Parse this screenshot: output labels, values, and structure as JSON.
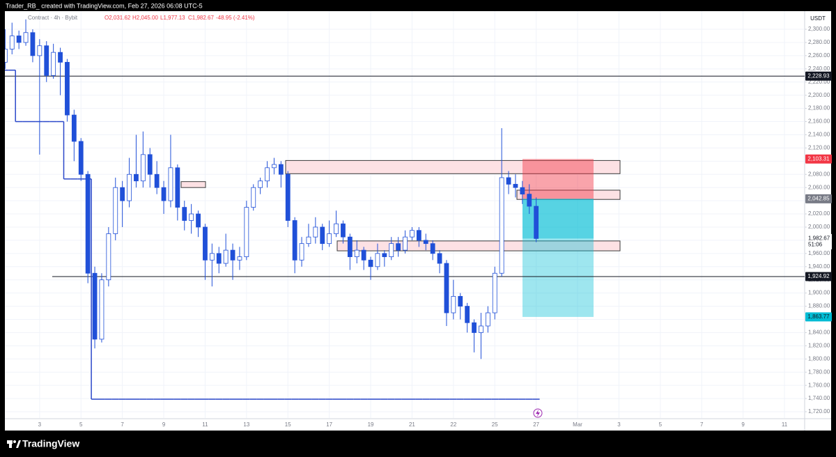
{
  "chart_data": {
    "type": "candlestick",
    "title": "Trader_RB_ created with TradingView.com, Feb 27, 2026 06:08 UTC-5",
    "symbol": "Contract · 4h · Bybit",
    "ohlc_legend": [
      "O2,031.62",
      "H2,045.00",
      "L1,977.13",
      "C1,982.67",
      "-48.95 (-2.41%)"
    ],
    "currency": "USDT",
    "categories": [
      null,
      null,
      null,
      null,
      null,
      "3",
      null,
      null,
      null,
      null,
      null,
      "5",
      null,
      null,
      null,
      null,
      null,
      "7",
      null,
      null,
      null,
      null,
      null,
      "9",
      null,
      null,
      null,
      null,
      null,
      "11",
      null,
      null,
      null,
      null,
      null,
      "13",
      null,
      null,
      null,
      null,
      null,
      "15",
      null,
      null,
      null,
      null,
      null,
      "17",
      null,
      null,
      null,
      null,
      null,
      "19",
      null,
      null,
      null,
      null,
      null,
      "21",
      null,
      null,
      null,
      null,
      null,
      "22",
      null,
      null,
      null,
      null,
      null,
      "25",
      null,
      null,
      null,
      null,
      null,
      "27",
      null,
      null,
      null,
      null,
      null,
      "Mar",
      null,
      null,
      null,
      null,
      null,
      "3",
      null,
      null,
      null,
      null,
      null,
      "5",
      null,
      null,
      null,
      null,
      null,
      "7",
      null,
      null,
      null,
      null,
      null,
      "9",
      null,
      null,
      null,
      null,
      null,
      "11",
      null,
      null
    ],
    "open": [
      2250,
      2270,
      2290,
      2280,
      2295,
      2260,
      2275,
      2230,
      2265,
      2250,
      2170,
      2130,
      2080,
      1930,
      1830,
      1920,
      1990,
      2060,
      2040,
      2080,
      2070,
      2110,
      2080,
      2060,
      2040,
      2090,
      2030,
      2010,
      2020,
      2000,
      1950,
      1960,
      1945,
      1965,
      1950,
      1955,
      2030,
      2060,
      2070,
      2090,
      2095,
      2080,
      2010,
      1950,
      1975,
      1985,
      2000,
      1975,
      1990,
      2005,
      1985,
      1955,
      1965,
      1950,
      1940,
      1960,
      1955,
      1975,
      1965,
      1985,
      1995,
      1980,
      1975,
      1960,
      1945,
      1870,
      1895,
      1880,
      1855,
      1840,
      1850,
      1870,
      1930,
      2075,
      2065,
      2060,
      2050,
      2031.62,
      null,
      null,
      null,
      null,
      null,
      null,
      null,
      null,
      null,
      null,
      null,
      null,
      null,
      null,
      null,
      null,
      null,
      null,
      null,
      null,
      null,
      null,
      null,
      null,
      null,
      null,
      null,
      null,
      null,
      null,
      null,
      null,
      null,
      null,
      null,
      null,
      null,
      null
    ],
    "high": [
      2300,
      2310,
      2298,
      2315,
      2300,
      2285,
      2282,
      2278,
      2272,
      2255,
      2178,
      2135,
      2085,
      1940,
      1930,
      2000,
      2075,
      2070,
      2105,
      2140,
      2145,
      2120,
      2100,
      2070,
      2140,
      2095,
      2040,
      2035,
      2025,
      2005,
      1975,
      1970,
      1990,
      1975,
      1970,
      2040,
      2065,
      2075,
      2100,
      2105,
      2100,
      2085,
      2015,
      1985,
      2005,
      2015,
      2005,
      2010,
      2025,
      2010,
      1990,
      1980,
      1970,
      1955,
      1975,
      1965,
      1985,
      1985,
      1995,
      2000,
      2000,
      1990,
      1980,
      1965,
      1950,
      1920,
      1900,
      1885,
      1860,
      1870,
      1880,
      1940,
      2150,
      2085,
      2080,
      2070,
      2065,
      2045,
      null,
      null,
      null,
      null,
      null,
      null,
      null,
      null,
      null,
      null,
      null,
      null,
      null,
      null,
      null,
      null,
      null,
      null,
      null,
      null,
      null,
      null,
      null,
      null,
      null,
      null,
      null,
      null,
      null,
      null,
      null,
      null,
      null,
      null,
      null,
      null,
      null,
      null
    ],
    "low": [
      2240,
      2262,
      2270,
      2275,
      2250,
      2110,
      2220,
      2225,
      2200,
      2160,
      2100,
      2070,
      1915,
      1816,
      1825,
      1910,
      1980,
      2000,
      2030,
      2060,
      2060,
      2060,
      2050,
      2020,
      2030,
      2010,
      1995,
      1990,
      1985,
      1920,
      1910,
      1930,
      1940,
      1920,
      1935,
      1950,
      2025,
      2050,
      2060,
      2080,
      2060,
      2000,
      1930,
      1940,
      1970,
      1975,
      1965,
      1970,
      1985,
      1975,
      1935,
      1945,
      1935,
      1920,
      1935,
      1940,
      1950,
      1955,
      1960,
      1980,
      1970,
      1965,
      1950,
      1930,
      1850,
      1860,
      1860,
      1840,
      1810,
      1800,
      1840,
      1860,
      1925,
      2050,
      2045,
      2035,
      2020,
      1977.13,
      null,
      null,
      null,
      null,
      null,
      null,
      null,
      null,
      null,
      null,
      null,
      null,
      null,
      null,
      null,
      null,
      null,
      null,
      null,
      null,
      null,
      null,
      null,
      null,
      null,
      null,
      null,
      null,
      null,
      null,
      null,
      null,
      null,
      null,
      null,
      null,
      null,
      null
    ],
    "close": [
      2270,
      2290,
      2280,
      2295,
      2260,
      2275,
      2230,
      2265,
      2250,
      2170,
      2130,
      2080,
      1930,
      1830,
      1920,
      1990,
      2060,
      2040,
      2080,
      2070,
      2110,
      2080,
      2060,
      2040,
      2090,
      2030,
      2010,
      2020,
      2000,
      1950,
      1960,
      1945,
      1965,
      1950,
      1955,
      2030,
      2060,
      2070,
      2090,
      2095,
      2080,
      2010,
      1950,
      1975,
      1985,
      2000,
      1975,
      1990,
      2005,
      1985,
      1955,
      1965,
      1950,
      1940,
      1960,
      1955,
      1975,
      1965,
      1985,
      1995,
      1980,
      1975,
      1960,
      1945,
      1870,
      1895,
      1880,
      1855,
      1840,
      1850,
      1870,
      1930,
      2075,
      2065,
      2060,
      2050,
      2031.62,
      1982.67,
      null,
      null,
      null,
      null,
      null,
      null,
      null,
      null,
      null,
      null,
      null,
      null,
      null,
      null,
      null,
      null,
      null,
      null,
      null,
      null,
      null,
      null,
      null,
      null,
      null,
      null,
      null,
      null,
      null,
      null,
      null,
      null,
      null,
      null,
      null,
      null,
      null,
      null
    ],
    "up_color": "#ffffff",
    "down_color": "#2050d8",
    "border_color": "#2050d8",
    "step_line": {
      "color": "#2a47c9",
      "values": [
        2238,
        2238,
        2160,
        2160,
        2160,
        2160,
        2160,
        2160,
        2160,
        2073,
        2073,
        2073,
        2073,
        1739,
        1739,
        1739,
        1739,
        1739,
        1739,
        1739,
        1739,
        1739,
        1739,
        1739,
        1739,
        1739,
        1739,
        1739,
        1739,
        1739,
        1739,
        1739,
        1739,
        1739,
        1739,
        1739,
        1739,
        1739,
        1739,
        1739,
        1739,
        1739,
        1739,
        1739,
        1739,
        1739,
        1739,
        1739,
        1739,
        1739,
        1739,
        1739,
        1739,
        1739,
        1739,
        1739,
        1739,
        1739,
        1739,
        1739,
        1739,
        1739,
        1739,
        1739,
        1739,
        1739,
        1739,
        1739,
        1739,
        1739,
        1739,
        1739,
        1739,
        1739,
        1739,
        1739,
        1739,
        1739,
        null,
        null,
        null,
        null,
        null,
        null,
        null,
        null,
        null,
        null,
        null,
        null,
        null,
        null,
        null,
        null,
        null,
        null,
        null,
        null,
        null,
        null,
        null,
        null,
        null,
        null,
        null,
        null,
        null,
        null,
        null,
        null,
        null,
        null,
        null,
        null,
        null,
        null
      ]
    },
    "zones": [
      {
        "top": 2101,
        "bottom": 2081
      },
      {
        "top": 2069,
        "bottom": 2060
      },
      {
        "top": 2056,
        "bottom": 2042
      },
      {
        "top": 1979,
        "bottom": 1964
      }
    ],
    "zone_color": "#fde1e4",
    "levels": [
      {
        "value": 2228.93,
        "label": "2,228.93",
        "color": "#131722"
      },
      {
        "value": 1924.92,
        "label": "1,924.92",
        "color": "#131722"
      }
    ],
    "position": {
      "stop": {
        "value": 2103.31,
        "label": "2,103.31",
        "color": "#f23645"
      },
      "entry": {
        "value": 2042.85,
        "label": "2,042.85",
        "color": "#787b86"
      },
      "target": {
        "value": 1863.77,
        "label": "1,863.77",
        "color": "#00bcd4"
      }
    },
    "last_price": {
      "value": 1982.67,
      "label": "1,982.67",
      "countdown": "51:06"
    },
    "ylim": [
      1710.5,
      2327.5
    ],
    "yticks": [
      {
        "value": 1720,
        "label": "1,720.00"
      },
      {
        "value": 1740,
        "label": "1,740.00"
      },
      {
        "value": 1760,
        "label": "1,760.00"
      },
      {
        "value": 1780,
        "label": "1,780.00"
      },
      {
        "value": 1800,
        "label": "1,800.00"
      },
      {
        "value": 1820,
        "label": "1,820.00"
      },
      {
        "value": 1840,
        "label": "1,840.00"
      },
      {
        "value": 1860,
        "label": "1,860.00"
      },
      {
        "value": 1880,
        "label": "1,880.00"
      },
      {
        "value": 1900,
        "label": "1,900.00"
      },
      {
        "value": 1920,
        "label": "1,920.00"
      },
      {
        "value": 1940,
        "label": "1,940.00"
      },
      {
        "value": 1960,
        "label": "1,960.00"
      },
      {
        "value": 1980,
        "label": "1,980.00"
      },
      {
        "value": 2000,
        "label": "2,000.00"
      },
      {
        "value": 2020,
        "label": "2,020.00"
      },
      {
        "value": 2040,
        "label": "2,040.00"
      },
      {
        "value": 2060,
        "label": "2,060.00"
      },
      {
        "value": 2080,
        "label": "2,080.00"
      },
      {
        "value": 2100,
        "label": "2,100.00"
      },
      {
        "value": 2120,
        "label": "2,120.00"
      },
      {
        "value": 2140,
        "label": "2,140.00"
      },
      {
        "value": 2160,
        "label": "2,160.00"
      },
      {
        "value": 2180,
        "label": "2,180.00"
      },
      {
        "value": 2200,
        "label": "2,200.00"
      },
      {
        "value": 2220,
        "label": "2,220.00"
      },
      {
        "value": 2240,
        "label": "2,240.00"
      },
      {
        "value": 2260,
        "label": "2,260.00"
      },
      {
        "value": 2280,
        "label": "2,280.00"
      },
      {
        "value": 2300,
        "label": "2,300.00"
      }
    ],
    "grid": true
  },
  "footer_brand": "TradingView"
}
